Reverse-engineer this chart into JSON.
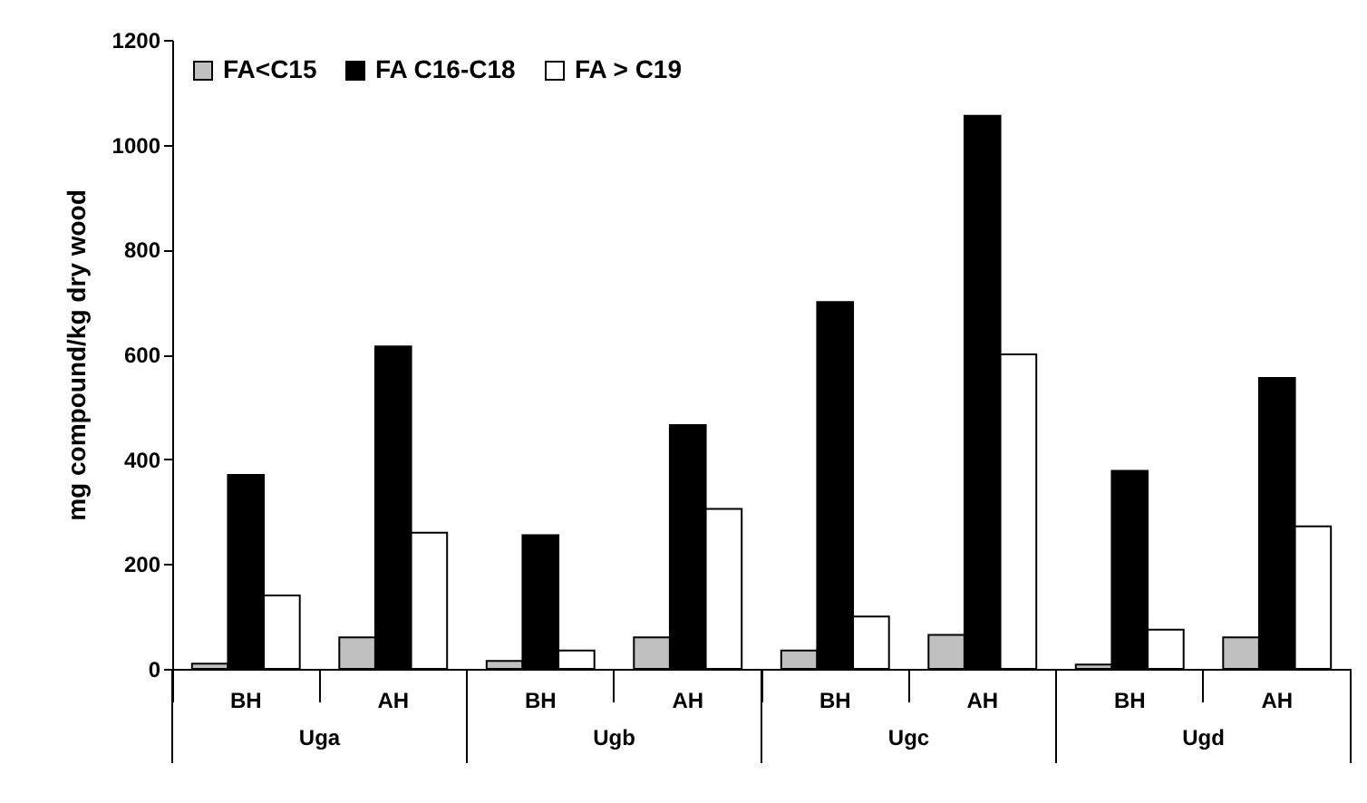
{
  "chart_data": {
    "type": "bar",
    "ylabel": "mg compound/kg dry wood",
    "categories": [
      "BH",
      "AH",
      "BH",
      "AH",
      "BH",
      "AH",
      "BH",
      "AH"
    ],
    "annotations": [
      "Uga",
      "Ugb",
      "Ugc",
      "Ugd"
    ],
    "series": [
      {
        "name": "FA<C15",
        "color": "#c0c0c0",
        "values": [
          10,
          60,
          15,
          60,
          35,
          65,
          8,
          60
        ]
      },
      {
        "name": "FA C16-C18",
        "color": "#000000",
        "values": [
          370,
          615,
          255,
          465,
          700,
          1055,
          378,
          555
        ]
      },
      {
        "name": "FA > C19",
        "color": "#ffffff",
        "values": [
          140,
          260,
          35,
          305,
          100,
          600,
          75,
          272
        ]
      }
    ],
    "ylim": [
      0,
      1200
    ],
    "yticks": [
      0,
      200,
      400,
      600,
      800,
      1000,
      1200
    ],
    "grid": false,
    "legend": "top left"
  }
}
